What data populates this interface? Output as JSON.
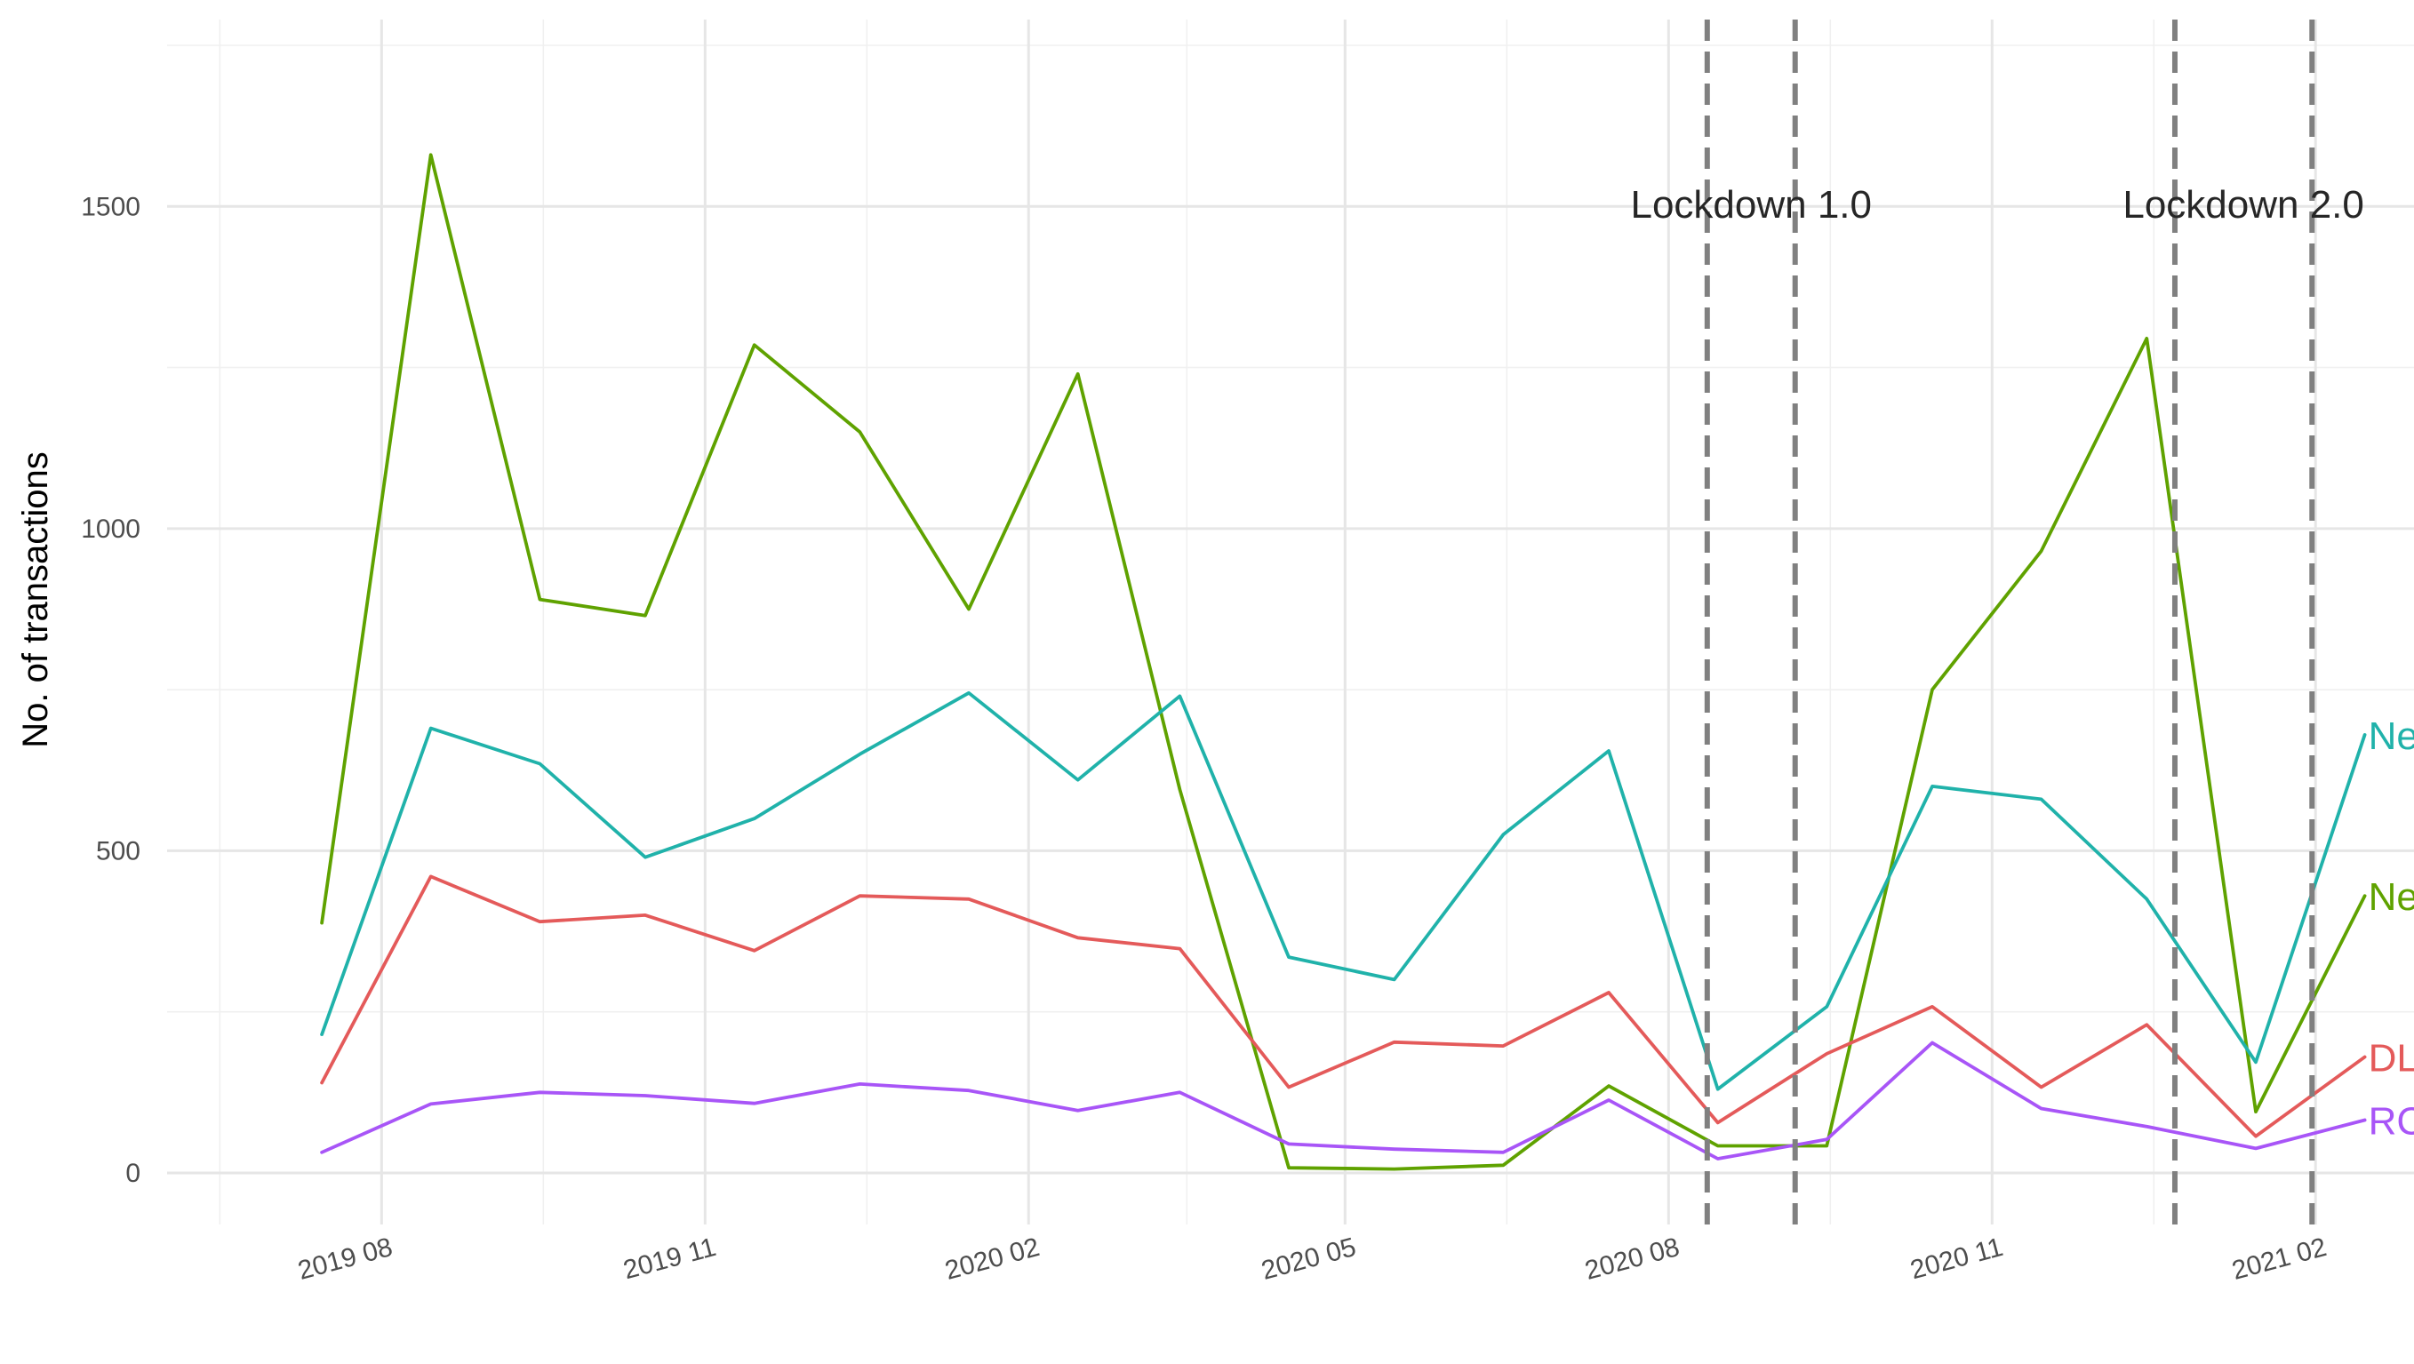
{
  "chart_data": {
    "type": "line",
    "ylabel": "No. of transactions",
    "xlabel": "",
    "x": [
      "2019-07",
      "2019-08",
      "2019-09",
      "2019-10",
      "2019-11",
      "2019-12",
      "2020-01",
      "2020-02",
      "2020-03",
      "2020-04",
      "2020-05",
      "2020-06",
      "2020-07",
      "2020-08",
      "2020-09",
      "2020-10",
      "2020-11",
      "2020-12",
      "2021-01",
      "2021-02"
    ],
    "xlim": [
      "2019-06-01",
      "2021-03-01"
    ],
    "x_ticks": [
      {
        "date": "2019-08-01",
        "label": "2019 08"
      },
      {
        "date": "2019-11-01",
        "label": "2019 11"
      },
      {
        "date": "2020-02-01",
        "label": "2020 02"
      },
      {
        "date": "2020-05-01",
        "label": "2020 05"
      },
      {
        "date": "2020-08-01",
        "label": "2020 08"
      },
      {
        "date": "2020-11-01",
        "label": "2020 11"
      },
      {
        "date": "2021-02-01",
        "label": "2021 02"
      }
    ],
    "ylim": [
      -80,
      1790
    ],
    "y_ticks": [
      0,
      500,
      1000,
      1500
    ],
    "grid": true,
    "series": [
      {
        "name": "New DL",
        "color": "#5FA200",
        "values": [
          388,
          1580,
          890,
          865,
          1285,
          1150,
          875,
          1240,
          595,
          8,
          6,
          12,
          135,
          42,
          42,
          750,
          965,
          1295,
          95,
          430
        ]
      },
      {
        "name": "New RC",
        "color": "#20B2AA",
        "values": [
          215,
          690,
          635,
          490,
          550,
          650,
          745,
          610,
          740,
          335,
          300,
          525,
          655,
          130,
          258,
          600,
          580,
          425,
          172,
          680
        ]
      },
      {
        "name": "DL replace",
        "color": "#E45A5A",
        "values": [
          140,
          460,
          390,
          400,
          345,
          430,
          425,
          365,
          348,
          133,
          203,
          197,
          280,
          78,
          185,
          258,
          133,
          230,
          57,
          180
        ]
      },
      {
        "name": "RC replace",
        "color": "#A855F7",
        "values": [
          32,
          107,
          125,
          120,
          108,
          138,
          128,
          97,
          125,
          45,
          37,
          32,
          113,
          22,
          52,
          202,
          100,
          72,
          38,
          82
        ]
      }
    ],
    "annotations": [
      {
        "text": "Lockdown 1.0",
        "start": "2020-08-12",
        "end": "2020-09-06"
      },
      {
        "text": "Lockdown 2.0",
        "start": "2020-12-23",
        "end": "2021-01-31"
      }
    ]
  }
}
